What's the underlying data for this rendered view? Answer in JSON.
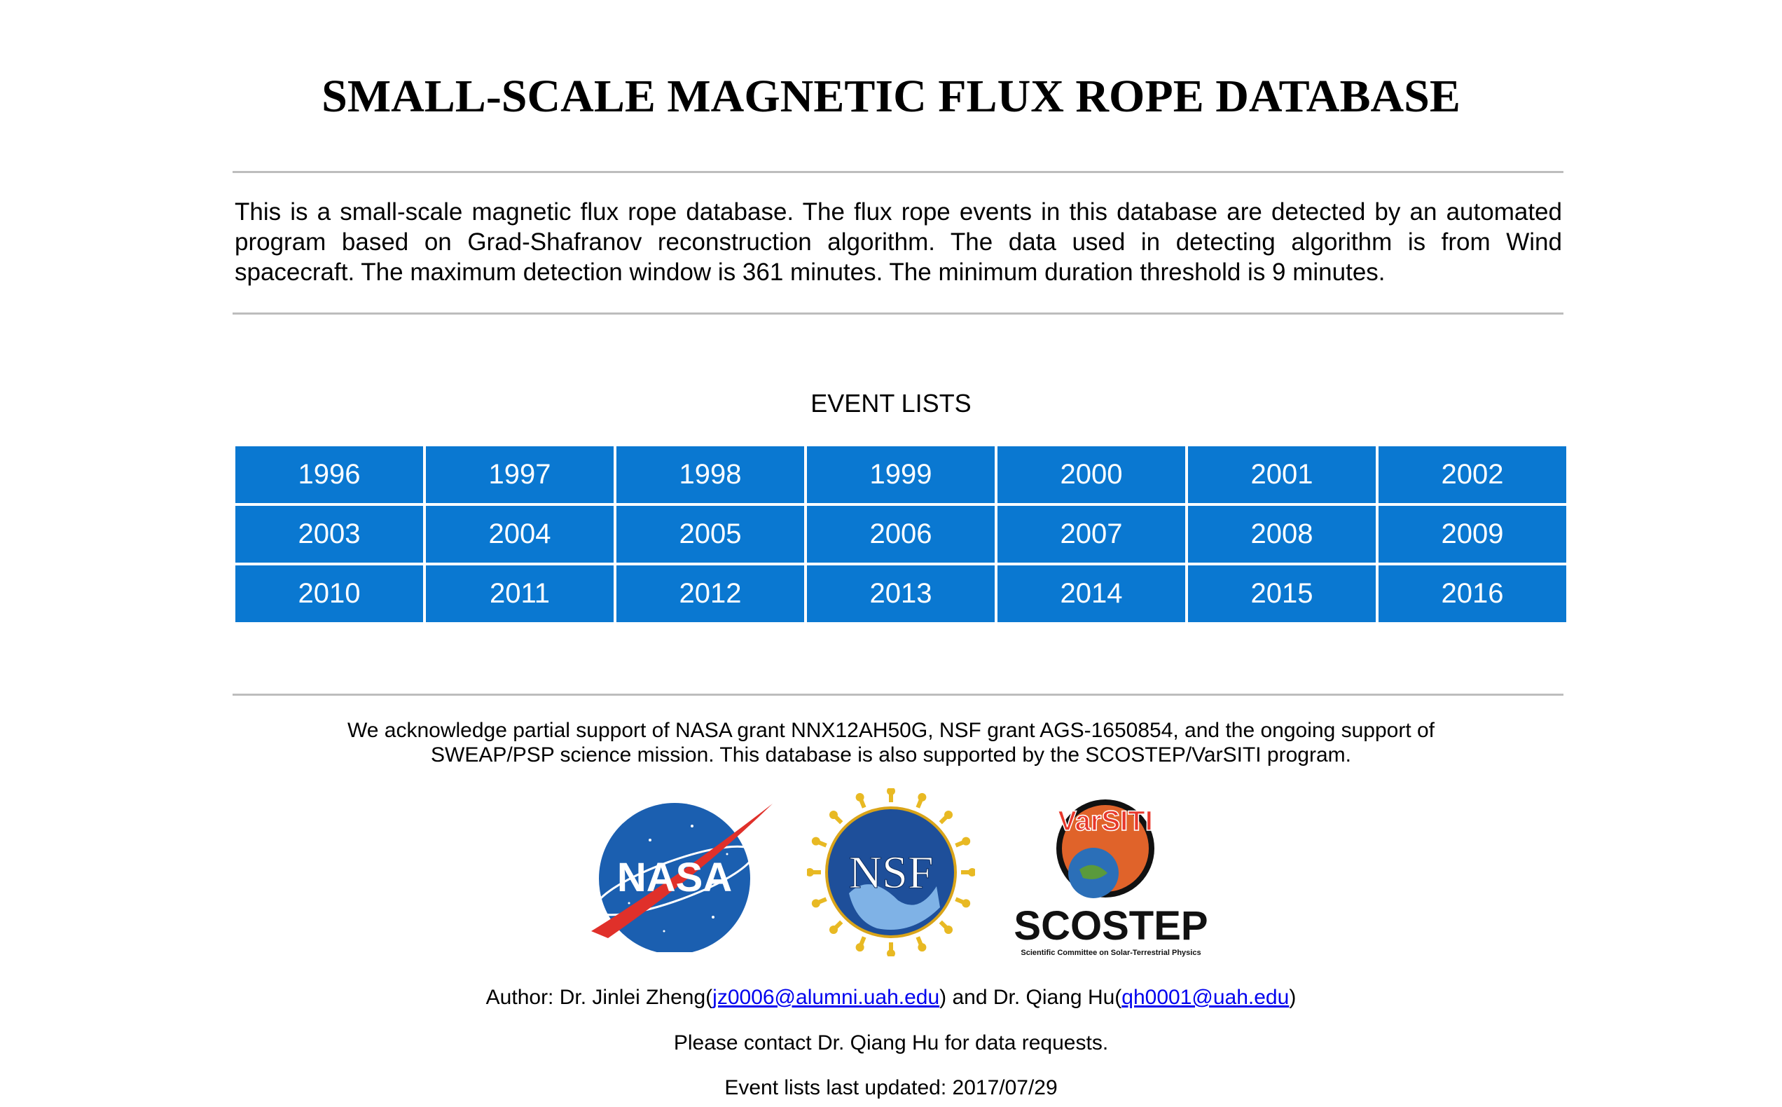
{
  "page": {
    "title": "SMALL-SCALE MAGNETIC FLUX ROPE DATABASE",
    "intro": "This is a small-scale magnetic flux rope database. The flux rope events in this database are detected by an automated program based on Grad-Shafranov reconstruction algorithm. The data used in detecting algorithm is from Wind spacecraft. The maximum detection window is 361 minutes. The minimum duration threshold is 9 minutes.",
    "event_lists_title": "EVENT LISTS"
  },
  "years": [
    "1996",
    "1997",
    "1998",
    "1999",
    "2000",
    "2001",
    "2002",
    "2003",
    "2004",
    "2005",
    "2006",
    "2007",
    "2008",
    "2009",
    "2010",
    "2011",
    "2012",
    "2013",
    "2014",
    "2015",
    "2016"
  ],
  "acknowledgement": {
    "line1": "We acknowledge partial support of NASA grant NNX12AH50G, NSF grant AGS-1650854, and the ongoing support of",
    "line2": "SWEAP/PSP science mission. This database is also supported by the SCOSTEP/VarSITI program."
  },
  "logos": {
    "nasa": "NASA",
    "nsf": "NSF",
    "varsiti": "VarSITI",
    "scostep": "SCOSTEP",
    "scostep_tagline": "Scientific Committee on Solar-Terrestrial Physics"
  },
  "footer": {
    "author_prefix": "Author: Dr. Jinlei Zheng(",
    "email1": "jz0006@alumni.uah.edu",
    "author_middle": ") and Dr. Qiang Hu(",
    "email2": "qh0001@uah.edu",
    "author_suffix": ")",
    "contact": "Please contact Dr. Qiang Hu for data requests.",
    "updated": "Event lists last updated: 2017/07/29"
  },
  "colors": {
    "button_bg": "#0a78d1",
    "rule": "#bdbdbd",
    "link": "#0000ee"
  }
}
